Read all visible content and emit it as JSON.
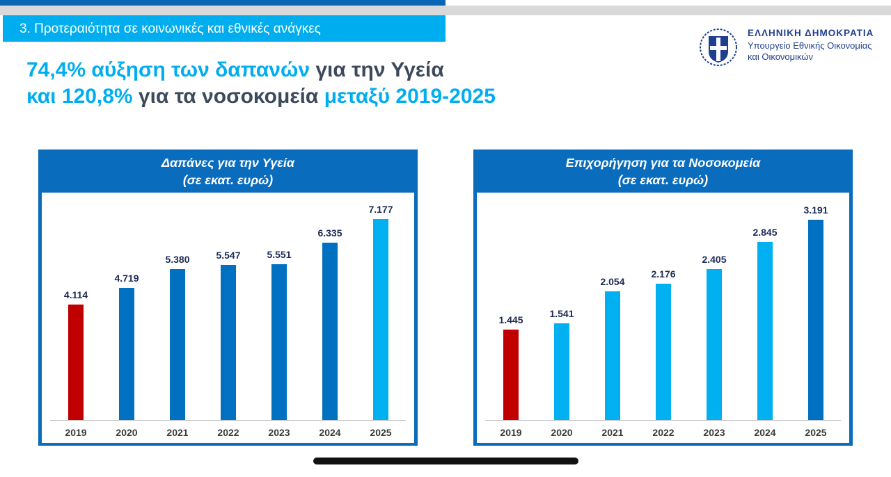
{
  "section_title": "3. Προτεραιότητα σε κοινωνικές και εθνικές ανάγκες",
  "headline": {
    "line1_a": "74,4% αύξηση των δαπανών",
    "line1_b": " για την Υγεία",
    "line2_a": "και 120,8%",
    "line2_b": " για τα νοσοκομεία ",
    "line2_c": "μεταξύ 2019-2025"
  },
  "organization": {
    "name": "ΕΛΛΗΝΙΚΗ ΔΗΜΟΚΡΑΤΙΑ",
    "ministry_line1": "Υπουργείο Εθνικής Οικονομίας",
    "ministry_line2": "και Οικονομικών"
  },
  "colors": {
    "red": "#c00000",
    "dark_blue": "#0070c0",
    "light_blue": "#00b0f0",
    "panel": "#0a6cbd"
  },
  "chart_data": [
    {
      "type": "bar",
      "title": "Δαπάνες για την Υγεία",
      "subtitle": "(σε εκατ. ευρώ)",
      "categories": [
        "2019",
        "2020",
        "2021",
        "2022",
        "2023",
        "2024",
        "2025"
      ],
      "values": [
        4114,
        4719,
        5380,
        5547,
        5551,
        6335,
        7177
      ],
      "labels": [
        "4.114",
        "4.719",
        "5.380",
        "5.547",
        "5.551",
        "6.335",
        "7.177"
      ],
      "bar_colors": [
        "#c00000",
        "#0070c0",
        "#0070c0",
        "#0070c0",
        "#0070c0",
        "#0070c0",
        "#00b0f0"
      ],
      "ylim": [
        0,
        7500
      ],
      "grid": false
    },
    {
      "type": "bar",
      "title": "Επιχορήγηση για τα Νοσοκομεία",
      "subtitle": "(σε εκατ. ευρώ)",
      "categories": [
        "2019",
        "2020",
        "2021",
        "2022",
        "2023",
        "2024",
        "2025"
      ],
      "values": [
        1445,
        1541,
        2054,
        2176,
        2405,
        2845,
        3191
      ],
      "labels": [
        "1.445",
        "1.541",
        "2.054",
        "2.176",
        "2.405",
        "2.845",
        "3.191"
      ],
      "bar_colors": [
        "#c00000",
        "#00b0f0",
        "#00b0f0",
        "#00b0f0",
        "#00b0f0",
        "#00b0f0",
        "#0070c0"
      ],
      "ylim": [
        0,
        3350
      ],
      "grid": false
    }
  ]
}
